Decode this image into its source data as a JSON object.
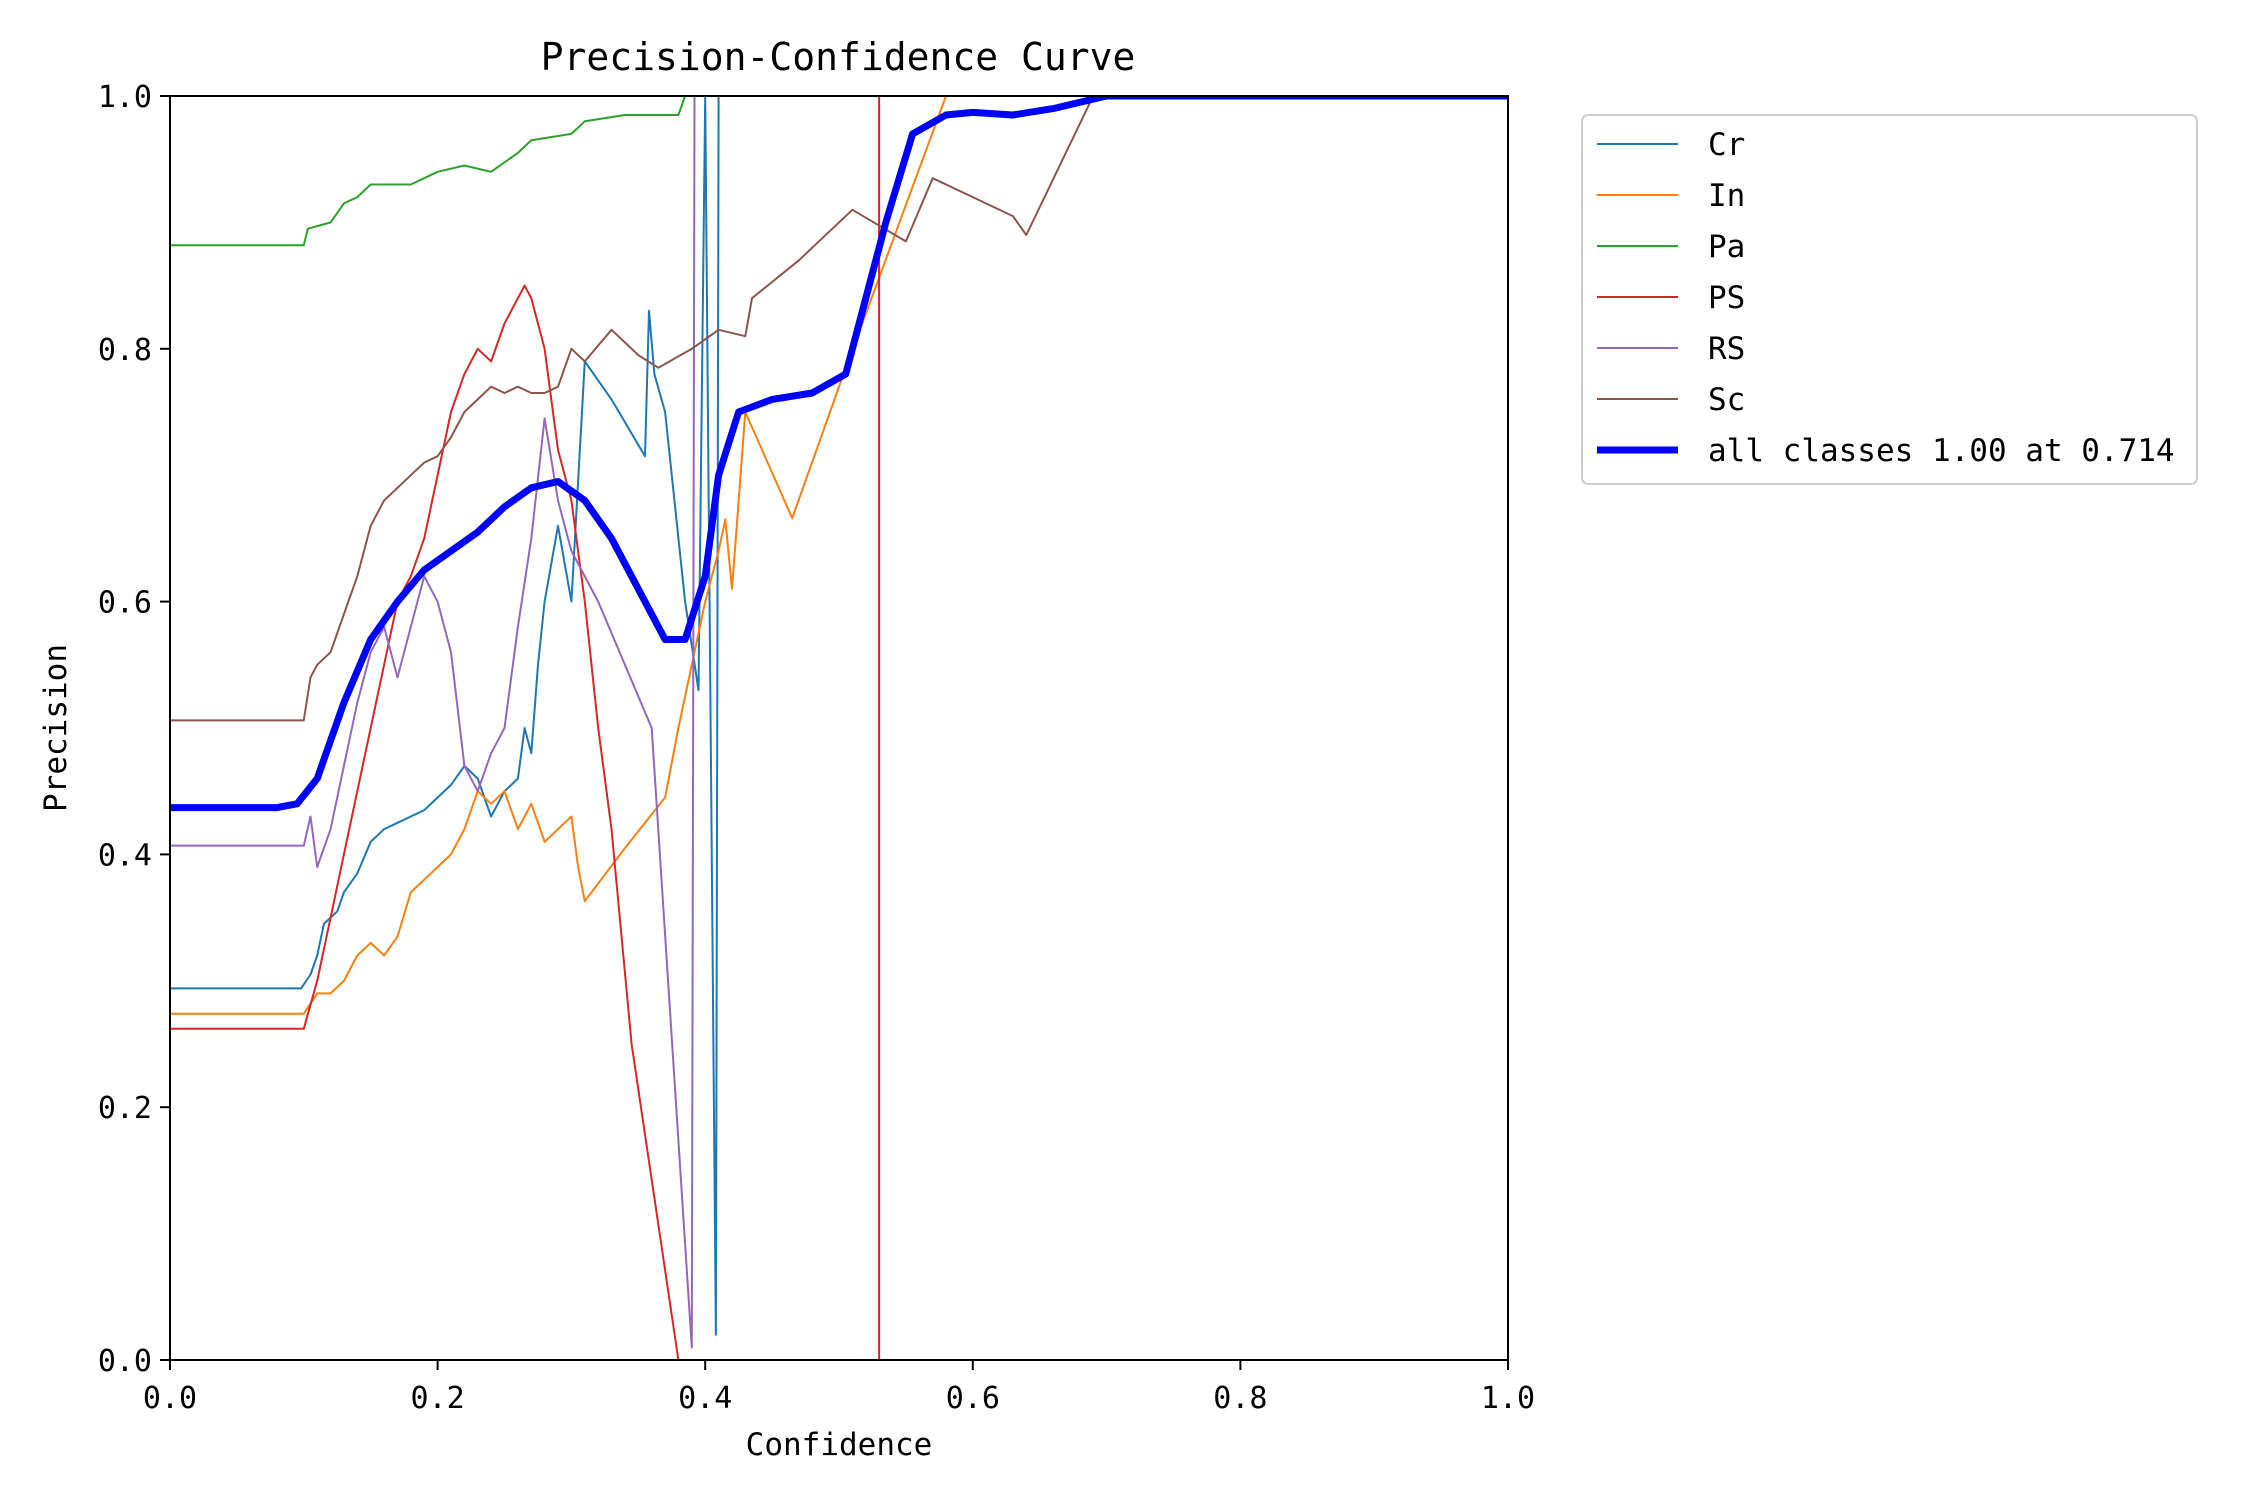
{
  "chart_data": {
    "type": "line",
    "title": "Precision-Confidence Curve",
    "xlabel": "Confidence",
    "ylabel": "Precision",
    "xlim": [
      0,
      1
    ],
    "ylim": [
      0,
      1
    ],
    "x_ticks": [
      "0.0",
      "0.2",
      "0.4",
      "0.6",
      "0.8",
      "1.0"
    ],
    "y_ticks": [
      "0.0",
      "0.2",
      "0.4",
      "0.6",
      "0.8",
      "1.0"
    ],
    "grid": false,
    "legend_position": "outside-top-right",
    "series": [
      {
        "name": "Cr",
        "color": "#1f77b4",
        "width": 2,
        "points": [
          [
            0,
            0.294
          ],
          [
            0.098,
            0.294
          ],
          [
            0.105,
            0.305
          ],
          [
            0.11,
            0.32
          ],
          [
            0.115,
            0.345
          ],
          [
            0.125,
            0.355
          ],
          [
            0.13,
            0.37
          ],
          [
            0.14,
            0.385
          ],
          [
            0.15,
            0.41
          ],
          [
            0.16,
            0.42
          ],
          [
            0.17,
            0.425
          ],
          [
            0.18,
            0.43
          ],
          [
            0.19,
            0.435
          ],
          [
            0.2,
            0.445
          ],
          [
            0.21,
            0.455
          ],
          [
            0.22,
            0.47
          ],
          [
            0.23,
            0.46
          ],
          [
            0.24,
            0.43
          ],
          [
            0.25,
            0.45
          ],
          [
            0.26,
            0.46
          ],
          [
            0.265,
            0.5
          ],
          [
            0.27,
            0.48
          ],
          [
            0.275,
            0.55
          ],
          [
            0.28,
            0.6
          ],
          [
            0.29,
            0.66
          ],
          [
            0.3,
            0.6
          ],
          [
            0.31,
            0.79
          ],
          [
            0.33,
            0.76
          ],
          [
            0.355,
            0.715
          ],
          [
            0.358,
            0.83
          ],
          [
            0.362,
            0.78
          ],
          [
            0.37,
            0.75
          ],
          [
            0.385,
            0.6
          ],
          [
            0.395,
            0.53
          ],
          [
            0.4,
            1.0
          ],
          [
            0.408,
            0.02
          ],
          [
            0.41,
            1.0
          ],
          [
            1.0,
            1.0
          ]
        ]
      },
      {
        "name": "In",
        "color": "#ff7f0e",
        "width": 2,
        "points": [
          [
            0,
            0.274
          ],
          [
            0.1,
            0.274
          ],
          [
            0.11,
            0.29
          ],
          [
            0.12,
            0.29
          ],
          [
            0.13,
            0.3
          ],
          [
            0.14,
            0.32
          ],
          [
            0.15,
            0.33
          ],
          [
            0.16,
            0.32
          ],
          [
            0.17,
            0.335
          ],
          [
            0.18,
            0.37
          ],
          [
            0.19,
            0.38
          ],
          [
            0.2,
            0.39
          ],
          [
            0.21,
            0.4
          ],
          [
            0.22,
            0.42
          ],
          [
            0.23,
            0.45
          ],
          [
            0.24,
            0.44
          ],
          [
            0.25,
            0.45
          ],
          [
            0.26,
            0.42
          ],
          [
            0.27,
            0.44
          ],
          [
            0.28,
            0.41
          ],
          [
            0.29,
            0.42
          ],
          [
            0.3,
            0.43
          ],
          [
            0.305,
            0.39
          ],
          [
            0.31,
            0.363
          ],
          [
            0.34,
            0.405
          ],
          [
            0.37,
            0.445
          ],
          [
            0.38,
            0.5
          ],
          [
            0.39,
            0.55
          ],
          [
            0.4,
            0.6
          ],
          [
            0.41,
            0.64
          ],
          [
            0.415,
            0.665
          ],
          [
            0.42,
            0.61
          ],
          [
            0.43,
            0.75
          ],
          [
            0.465,
            0.666
          ],
          [
            0.5,
            0.77
          ],
          [
            0.58,
            1.0
          ],
          [
            1.0,
            1.0
          ]
        ]
      },
      {
        "name": "Pa",
        "color": "#2ca02c",
        "width": 2,
        "points": [
          [
            0,
            0.882
          ],
          [
            0.1,
            0.882
          ],
          [
            0.103,
            0.895
          ],
          [
            0.12,
            0.9
          ],
          [
            0.13,
            0.915
          ],
          [
            0.14,
            0.92
          ],
          [
            0.15,
            0.93
          ],
          [
            0.18,
            0.93
          ],
          [
            0.2,
            0.94
          ],
          [
            0.22,
            0.945
          ],
          [
            0.24,
            0.94
          ],
          [
            0.26,
            0.955
          ],
          [
            0.27,
            0.965
          ],
          [
            0.3,
            0.97
          ],
          [
            0.31,
            0.98
          ],
          [
            0.34,
            0.985
          ],
          [
            0.38,
            0.985
          ],
          [
            0.385,
            1.0
          ],
          [
            1.0,
            1.0
          ]
        ]
      },
      {
        "name": "PS",
        "color": "#d62728",
        "width": 2,
        "points": [
          [
            0,
            0.262
          ],
          [
            0.1,
            0.262
          ],
          [
            0.11,
            0.3
          ],
          [
            0.12,
            0.35
          ],
          [
            0.13,
            0.4
          ],
          [
            0.14,
            0.45
          ],
          [
            0.15,
            0.5
          ],
          [
            0.16,
            0.55
          ],
          [
            0.17,
            0.6
          ],
          [
            0.18,
            0.62
          ],
          [
            0.19,
            0.65
          ],
          [
            0.2,
            0.7
          ],
          [
            0.21,
            0.75
          ],
          [
            0.22,
            0.78
          ],
          [
            0.23,
            0.8
          ],
          [
            0.24,
            0.79
          ],
          [
            0.25,
            0.82
          ],
          [
            0.26,
            0.84
          ],
          [
            0.265,
            0.85
          ],
          [
            0.27,
            0.84
          ],
          [
            0.28,
            0.8
          ],
          [
            0.29,
            0.72
          ],
          [
            0.3,
            0.68
          ],
          [
            0.31,
            0.6
          ],
          [
            0.32,
            0.5
          ],
          [
            0.33,
            0.42
          ],
          [
            0.345,
            0.25
          ],
          [
            0.38,
            0.0
          ],
          [
            0.53,
            0.0
          ],
          [
            0.53,
            1.0
          ],
          [
            1.0,
            1.0
          ]
        ]
      },
      {
        "name": "RS",
        "color": "#9467bd",
        "width": 2,
        "points": [
          [
            0,
            0.407
          ],
          [
            0.1,
            0.407
          ],
          [
            0.105,
            0.43
          ],
          [
            0.11,
            0.39
          ],
          [
            0.12,
            0.42
          ],
          [
            0.13,
            0.47
          ],
          [
            0.14,
            0.52
          ],
          [
            0.15,
            0.56
          ],
          [
            0.16,
            0.58
          ],
          [
            0.17,
            0.54
          ],
          [
            0.18,
            0.58
          ],
          [
            0.19,
            0.62
          ],
          [
            0.2,
            0.6
          ],
          [
            0.21,
            0.56
          ],
          [
            0.22,
            0.47
          ],
          [
            0.23,
            0.45
          ],
          [
            0.24,
            0.48
          ],
          [
            0.25,
            0.5
          ],
          [
            0.26,
            0.58
          ],
          [
            0.27,
            0.65
          ],
          [
            0.28,
            0.745
          ],
          [
            0.29,
            0.68
          ],
          [
            0.3,
            0.64
          ],
          [
            0.32,
            0.6
          ],
          [
            0.36,
            0.5
          ],
          [
            0.39,
            0.01
          ],
          [
            0.392,
            1.0
          ],
          [
            1.0,
            1.0
          ]
        ]
      },
      {
        "name": "Sc",
        "color": "#8c564b",
        "width": 2,
        "points": [
          [
            0,
            0.506
          ],
          [
            0.1,
            0.506
          ],
          [
            0.105,
            0.54
          ],
          [
            0.11,
            0.55
          ],
          [
            0.12,
            0.56
          ],
          [
            0.13,
            0.59
          ],
          [
            0.14,
            0.62
          ],
          [
            0.15,
            0.66
          ],
          [
            0.16,
            0.68
          ],
          [
            0.17,
            0.69
          ],
          [
            0.18,
            0.7
          ],
          [
            0.19,
            0.71
          ],
          [
            0.2,
            0.715
          ],
          [
            0.21,
            0.73
          ],
          [
            0.22,
            0.75
          ],
          [
            0.23,
            0.76
          ],
          [
            0.24,
            0.77
          ],
          [
            0.25,
            0.765
          ],
          [
            0.26,
            0.77
          ],
          [
            0.27,
            0.765
          ],
          [
            0.28,
            0.765
          ],
          [
            0.29,
            0.77
          ],
          [
            0.3,
            0.8
          ],
          [
            0.31,
            0.79
          ],
          [
            0.33,
            0.815
          ],
          [
            0.35,
            0.795
          ],
          [
            0.365,
            0.785
          ],
          [
            0.39,
            0.8
          ],
          [
            0.41,
            0.815
          ],
          [
            0.43,
            0.81
          ],
          [
            0.435,
            0.84
          ],
          [
            0.47,
            0.87
          ],
          [
            0.48,
            0.88
          ],
          [
            0.51,
            0.91
          ],
          [
            0.55,
            0.885
          ],
          [
            0.57,
            0.935
          ],
          [
            0.6,
            0.92
          ],
          [
            0.63,
            0.905
          ],
          [
            0.64,
            0.89
          ],
          [
            0.69,
            1.0
          ],
          [
            1.0,
            1.0
          ]
        ]
      },
      {
        "name": "all classes 1.00 at 0.714",
        "color": "#0000ff",
        "width": 7,
        "points": [
          [
            0,
            0.437
          ],
          [
            0.08,
            0.437
          ],
          [
            0.095,
            0.44
          ],
          [
            0.11,
            0.46
          ],
          [
            0.13,
            0.52
          ],
          [
            0.15,
            0.57
          ],
          [
            0.17,
            0.6
          ],
          [
            0.19,
            0.625
          ],
          [
            0.21,
            0.64
          ],
          [
            0.23,
            0.655
          ],
          [
            0.25,
            0.675
          ],
          [
            0.27,
            0.69
          ],
          [
            0.29,
            0.695
          ],
          [
            0.31,
            0.68
          ],
          [
            0.33,
            0.65
          ],
          [
            0.35,
            0.61
          ],
          [
            0.37,
            0.57
          ],
          [
            0.385,
            0.57
          ],
          [
            0.4,
            0.62
          ],
          [
            0.41,
            0.7
          ],
          [
            0.425,
            0.75
          ],
          [
            0.45,
            0.76
          ],
          [
            0.48,
            0.765
          ],
          [
            0.505,
            0.78
          ],
          [
            0.52,
            0.84
          ],
          [
            0.535,
            0.9
          ],
          [
            0.555,
            0.97
          ],
          [
            0.58,
            0.985
          ],
          [
            0.6,
            0.987
          ],
          [
            0.63,
            0.985
          ],
          [
            0.66,
            0.99
          ],
          [
            0.7,
            1.0
          ],
          [
            1.0,
            1.0
          ]
        ]
      }
    ]
  }
}
